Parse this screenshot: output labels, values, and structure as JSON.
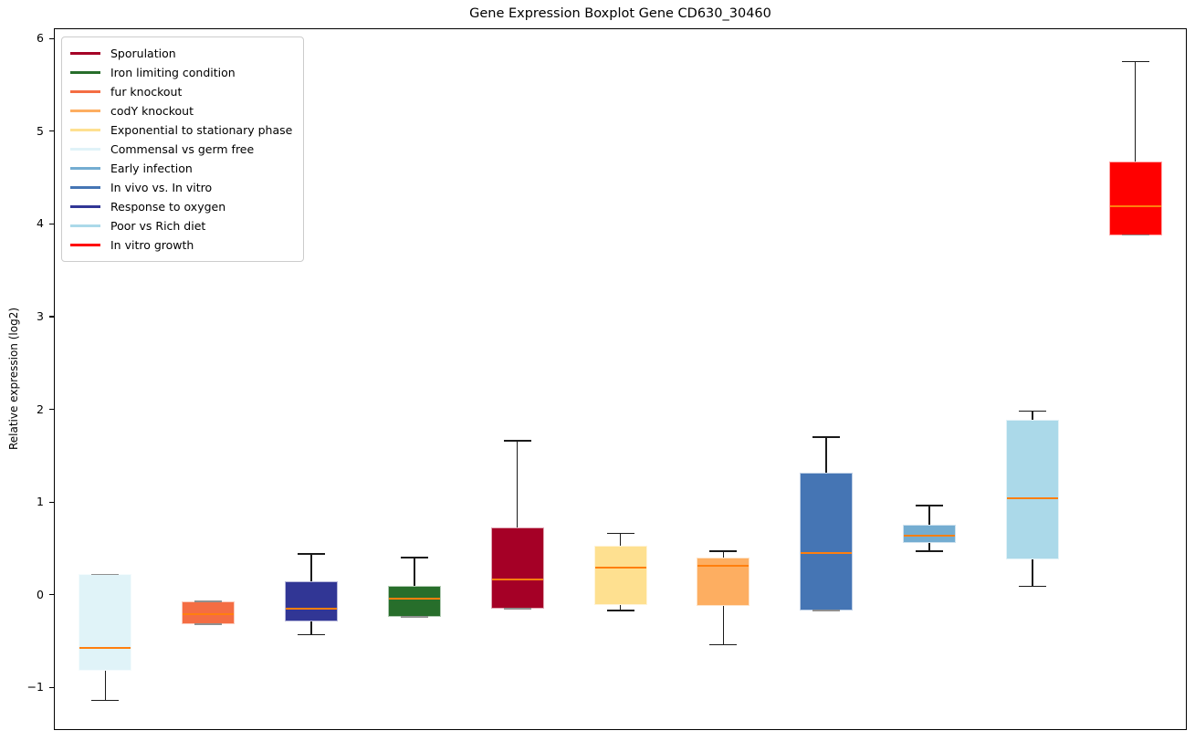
{
  "chart_data": {
    "type": "boxplot",
    "title": "Gene Expression Boxplot Gene CD630_30460",
    "xlabel": "",
    "ylabel": "Relative expression (log2)",
    "ylim": [
      -1.46,
      6.11
    ],
    "yticks": [
      -1,
      0,
      1,
      2,
      3,
      4,
      5,
      6
    ],
    "grid": false,
    "legend_position": "upper left",
    "median_color": "#ff7f0e",
    "whisker_color": "#1a1a1a",
    "cap_overlap_color": "#909090",
    "legend": [
      {
        "label": "Sporulation",
        "color": "#a50026"
      },
      {
        "label": "Iron limiting condition",
        "color": "#276e2b"
      },
      {
        "label": "fur knockout",
        "color": "#f46d43"
      },
      {
        "label": "codY knockout",
        "color": "#fdae61"
      },
      {
        "label": "Exponential to stationary phase",
        "color": "#fee090"
      },
      {
        "label": "Commensal vs germ free",
        "color": "#e0f3f8"
      },
      {
        "label": "Early infection",
        "color": "#74add1"
      },
      {
        "label": "In vivo vs. In vitro",
        "color": "#4575b4"
      },
      {
        "label": "Response to oxygen",
        "color": "#313695"
      },
      {
        "label": "Poor vs Rich diet",
        "color": "#abd9e9"
      },
      {
        "label": "In vitro growth",
        "color": "#ff0000"
      }
    ],
    "series": [
      {
        "label": "Commensal vs germ free",
        "color": "#e0f3f8",
        "whisker_low": -1.14,
        "q1": -0.82,
        "median": -0.57,
        "q3": 0.22,
        "whisker_high": 0.22
      },
      {
        "label": "fur knockout",
        "color": "#f46d43",
        "whisker_low": -0.32,
        "q1": -0.32,
        "median": -0.21,
        "q3": -0.07,
        "whisker_high": -0.07
      },
      {
        "label": "Response to oxygen",
        "color": "#313695",
        "whisker_low": -0.43,
        "q1": -0.29,
        "median": -0.15,
        "q3": 0.14,
        "whisker_high": 0.44
      },
      {
        "label": "Iron limiting condition",
        "color": "#276e2b",
        "whisker_low": -0.24,
        "q1": -0.24,
        "median": -0.04,
        "q3": 0.1,
        "whisker_high": 0.4
      },
      {
        "label": "Sporulation",
        "color": "#a50026",
        "whisker_low": -0.15,
        "q1": -0.15,
        "median": 0.16,
        "q3": 0.73,
        "whisker_high": 1.66
      },
      {
        "label": "Exponential to stationary phase",
        "color": "#fee090",
        "whisker_low": -0.17,
        "q1": -0.11,
        "median": 0.29,
        "q3": 0.53,
        "whisker_high": 0.66
      },
      {
        "label": "codY knockout",
        "color": "#fdae61",
        "whisker_low": -0.54,
        "q1": -0.12,
        "median": 0.31,
        "q3": 0.4,
        "whisker_high": 0.47
      },
      {
        "label": "In vivo vs. In vitro",
        "color": "#4575b4",
        "whisker_low": -0.17,
        "q1": -0.17,
        "median": 0.45,
        "q3": 1.32,
        "whisker_high": 1.7
      },
      {
        "label": "Early infection",
        "color": "#74add1",
        "whisker_low": 0.47,
        "q1": 0.56,
        "median": 0.64,
        "q3": 0.75,
        "whisker_high": 0.96
      },
      {
        "label": "Poor vs Rich diet",
        "color": "#abd9e9",
        "whisker_low": 0.09,
        "q1": 0.38,
        "median": 1.04,
        "q3": 1.89,
        "whisker_high": 1.98
      },
      {
        "label": "In vitro growth",
        "color": "#ff0000",
        "whisker_low": 3.88,
        "q1": 3.88,
        "median": 4.19,
        "q3": 4.67,
        "whisker_high": 5.75
      }
    ]
  }
}
